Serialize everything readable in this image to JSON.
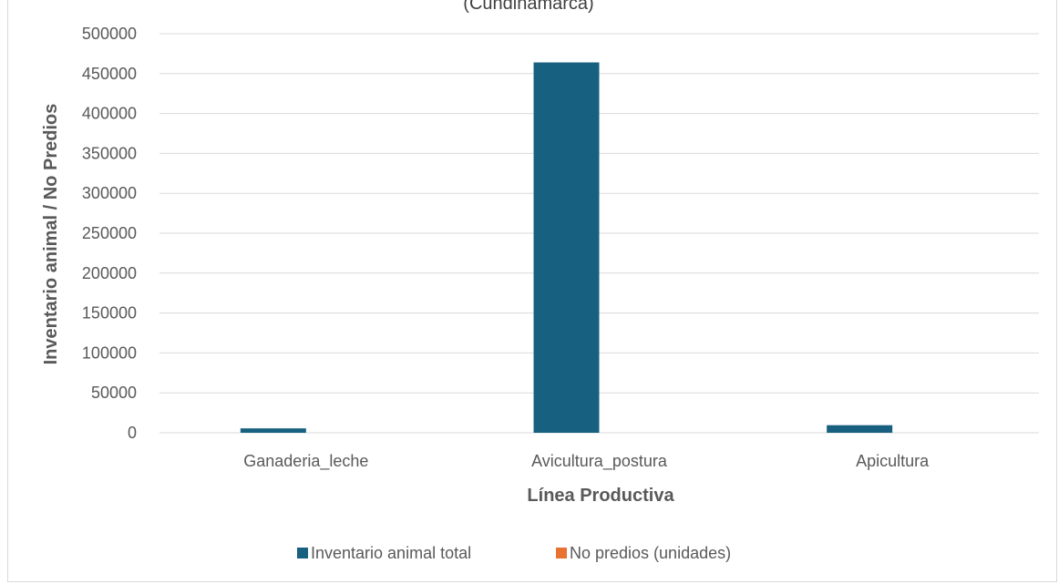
{
  "chart_data": {
    "type": "bar",
    "title": "(Cundinamarca)",
    "xlabel": "Línea Productiva",
    "ylabel": "Inventario animal / No Predios",
    "categories": [
      "Ganaderia_leche",
      "Avicultura_postura",
      "Apicultura"
    ],
    "series": [
      {
        "name": "Inventario animal total",
        "color": "#17607f",
        "values": [
          5500,
          464000,
          9500
        ]
      },
      {
        "name": "No predios (unidades)",
        "color": "#e97132",
        "values": [
          0,
          0,
          0
        ]
      }
    ],
    "ylim": [
      0,
      500000
    ],
    "yticks": [
      0,
      50000,
      100000,
      150000,
      200000,
      250000,
      300000,
      350000,
      400000,
      450000,
      500000
    ],
    "grid": true,
    "legend": "bottom"
  }
}
